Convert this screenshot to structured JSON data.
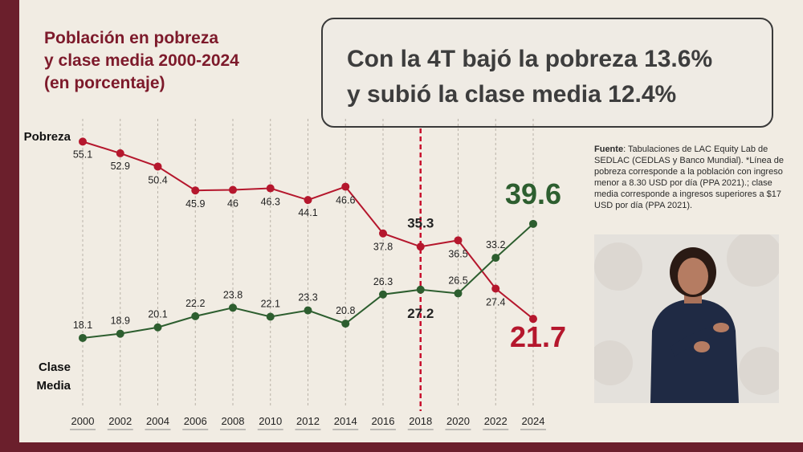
{
  "title": {
    "line1": "Población en pobreza",
    "line2": "y clase media 2000-2024",
    "line3": "(en porcentaje)"
  },
  "headline": {
    "line1": "Con la 4T bajó la pobreza 13.6%",
    "line2": "y subió la clase media 12.4%"
  },
  "source": {
    "label": "Fuente",
    "text": ": Tabulaciones de LAC Equity Lab de SEDLAC (CEDLAS y Banco Mundial). *Línea de pobreza corresponde a la población con ingreso menor a 8.30 USD por día (PPA 2021).; clase media corresponde a ingresos superiores a $17 USD por día (PPA 2021)."
  },
  "colors": {
    "poverty": "#b5172d",
    "middle": "#2d5e2f",
    "highlight_line": "#c8102e",
    "title": "#7d1a2b",
    "frame": "#6b1f2c"
  },
  "chart_data": {
    "type": "line",
    "x": [
      "2000",
      "2002",
      "2004",
      "2006",
      "2008",
      "2010",
      "2012",
      "2014",
      "2016",
      "2018",
      "2020",
      "2022",
      "2024"
    ],
    "series": [
      {
        "name": "Pobreza",
        "values": [
          55.1,
          52.9,
          50.4,
          45.9,
          46,
          46.3,
          44.1,
          46.6,
          37.8,
          35.3,
          36.5,
          27.4,
          21.7
        ]
      },
      {
        "name": "Clase Media",
        "values": [
          18.1,
          18.9,
          20.1,
          22.2,
          23.8,
          22.1,
          23.3,
          20.8,
          26.3,
          27.2,
          26.5,
          33.2,
          39.6
        ]
      }
    ],
    "series_labels": {
      "poverty": "Pobreza",
      "middle_line1": "Clase",
      "middle_line2": "Media"
    },
    "highlight_year": "2018",
    "grid": true,
    "legend": "inline-left"
  }
}
